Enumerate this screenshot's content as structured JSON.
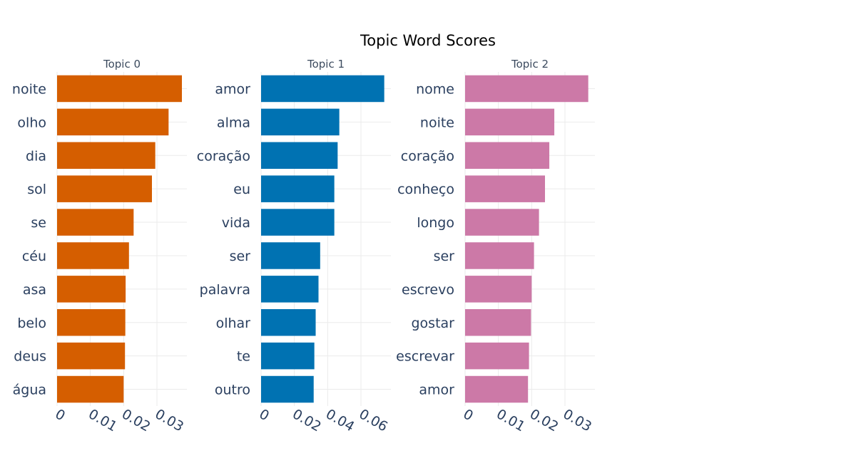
{
  "chart_data": {
    "type": "bar",
    "title": "Topic Word Scores",
    "panels": [
      {
        "subtitle": "Topic 0",
        "color": "#d55e00",
        "xlim": [
          0,
          0.039
        ],
        "xticks": [
          0,
          0.01,
          0.02,
          0.03
        ],
        "xtick_labels": [
          "0",
          "0.01",
          "0.02",
          "0.03"
        ],
        "categories": [
          "noite",
          "olho",
          "dia",
          "sol",
          "se",
          "céu",
          "asa",
          "belo",
          "deus",
          "água"
        ],
        "values": [
          0.0375,
          0.0335,
          0.0295,
          0.0285,
          0.023,
          0.0216,
          0.0206,
          0.0205,
          0.0204,
          0.02
        ]
      },
      {
        "subtitle": "Topic 1",
        "color": "#0072b2",
        "xlim": [
          0,
          0.078
        ],
        "xticks": [
          0,
          0.02,
          0.04,
          0.06
        ],
        "xtick_labels": [
          "0",
          "0.02",
          "0.04",
          "0.06"
        ],
        "categories": [
          "amor",
          "alma",
          "coração",
          "eu",
          "vida",
          "ser",
          "palavra",
          "olhar",
          "te",
          "outro"
        ],
        "values": [
          0.074,
          0.047,
          0.046,
          0.044,
          0.044,
          0.0355,
          0.0345,
          0.0328,
          0.032,
          0.0316
        ]
      },
      {
        "subtitle": "Topic 2",
        "color": "#cc79a7",
        "xlim": [
          0,
          0.039
        ],
        "xticks": [
          0,
          0.01,
          0.02,
          0.03
        ],
        "xtick_labels": [
          "0",
          "0.01",
          "0.02",
          "0.03"
        ],
        "categories": [
          "nome",
          "noite",
          "coração",
          "conheço",
          "longo",
          "ser",
          "escrevo",
          "gostar",
          "escrevar",
          "amor"
        ],
        "values": [
          0.037,
          0.0268,
          0.0253,
          0.024,
          0.0222,
          0.0207,
          0.02,
          0.0198,
          0.0192,
          0.0189
        ]
      }
    ]
  }
}
